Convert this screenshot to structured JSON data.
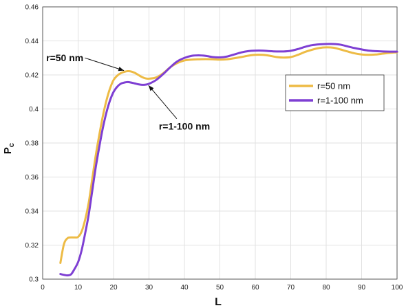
{
  "chart_data": {
    "type": "line",
    "title": "",
    "xlabel": "L",
    "ylabel_main": "P",
    "ylabel_sub": "c",
    "xlim": [
      0,
      100
    ],
    "ylim": [
      0.3,
      0.46
    ],
    "xticks": [
      0,
      10,
      20,
      30,
      40,
      50,
      60,
      70,
      80,
      90,
      100
    ],
    "xtick_labels": [
      "0",
      "10",
      "20",
      "30",
      "40",
      "50",
      "60",
      "70",
      "80",
      "90",
      "100"
    ],
    "yticks": [
      0.3,
      0.32,
      0.34,
      0.36,
      0.38,
      0.4,
      0.42,
      0.44,
      0.46
    ],
    "ytick_labels": [
      "0.3",
      "0.32",
      "0.34",
      "0.36",
      "0.38",
      "0.4",
      "0.42",
      "0.44",
      "0.46"
    ],
    "grid": true,
    "legend_position": "right",
    "series": [
      {
        "name": "r=50 nm",
        "color": "#EDBB45",
        "x": [
          5,
          6,
          7,
          8,
          9,
          10,
          11,
          12,
          13,
          14,
          15,
          16,
          17,
          18,
          19,
          20,
          21,
          22,
          23,
          24,
          25,
          26,
          27,
          28,
          29,
          30,
          32,
          34,
          36,
          38,
          40,
          42,
          44,
          46,
          48,
          50,
          52,
          54,
          56,
          58,
          60,
          62,
          64,
          66,
          68,
          70,
          72,
          74,
          76,
          78,
          80,
          82,
          84,
          86,
          88,
          90,
          92,
          94,
          96,
          98,
          100
        ],
        "y": [
          0.3095,
          0.3205,
          0.324,
          0.3245,
          0.3245,
          0.3248,
          0.328,
          0.335,
          0.345,
          0.359,
          0.373,
          0.385,
          0.396,
          0.405,
          0.412,
          0.417,
          0.4195,
          0.421,
          0.4218,
          0.4222,
          0.422,
          0.4212,
          0.42,
          0.4188,
          0.418,
          0.4178,
          0.4185,
          0.421,
          0.4245,
          0.427,
          0.4285,
          0.429,
          0.4292,
          0.4293,
          0.4292,
          0.429,
          0.4292,
          0.4298,
          0.4305,
          0.4313,
          0.4318,
          0.4318,
          0.4313,
          0.4305,
          0.4302,
          0.4305,
          0.4318,
          0.4335,
          0.4348,
          0.4358,
          0.4362,
          0.436,
          0.435,
          0.4338,
          0.4327,
          0.432,
          0.4318,
          0.432,
          0.4325,
          0.433,
          0.4333
        ]
      },
      {
        "name": "r=1-100 nm",
        "color": "#7E3FD3",
        "x": [
          5,
          6,
          7,
          8,
          9,
          10,
          11,
          12,
          13,
          14,
          15,
          16,
          17,
          18,
          19,
          20,
          21,
          22,
          23,
          24,
          25,
          26,
          27,
          28,
          29,
          30,
          32,
          34,
          36,
          38,
          40,
          42,
          44,
          46,
          48,
          50,
          52,
          54,
          56,
          58,
          60,
          62,
          64,
          66,
          68,
          70,
          72,
          74,
          76,
          78,
          80,
          82,
          84,
          86,
          88,
          90,
          92,
          94,
          96,
          98,
          100
        ],
        "y": [
          0.303,
          0.3025,
          0.3022,
          0.3028,
          0.306,
          0.31,
          0.317,
          0.327,
          0.338,
          0.352,
          0.366,
          0.378,
          0.389,
          0.398,
          0.405,
          0.41,
          0.413,
          0.4148,
          0.4155,
          0.4158,
          0.4155,
          0.415,
          0.4145,
          0.4142,
          0.4143,
          0.4148,
          0.417,
          0.4205,
          0.4245,
          0.428,
          0.43,
          0.4312,
          0.4315,
          0.4312,
          0.4305,
          0.4303,
          0.4308,
          0.432,
          0.4332,
          0.434,
          0.4343,
          0.4343,
          0.434,
          0.4338,
          0.4338,
          0.4342,
          0.4352,
          0.4365,
          0.4375,
          0.438,
          0.4382,
          0.4382,
          0.4378,
          0.4368,
          0.4358,
          0.435,
          0.4343,
          0.434,
          0.4338,
          0.4337,
          0.4337
        ]
      }
    ],
    "annotations": [
      {
        "text": "r=50 nm",
        "series_index": 0,
        "target": [
          23.5,
          0.4222
        ],
        "text_at": [
          1,
          0.428
        ],
        "anchor": "start"
      },
      {
        "text": "r=1-100 nm",
        "series_index": 1,
        "target": [
          29.5,
          0.4148
        ],
        "text_at": [
          40,
          0.3878
        ],
        "anchor": "middle"
      }
    ]
  }
}
